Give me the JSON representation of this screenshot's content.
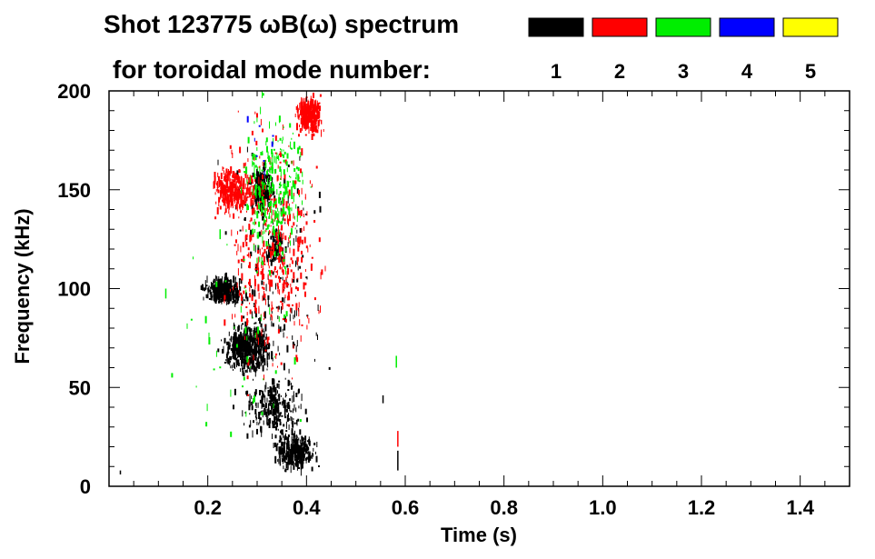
{
  "chart_data": {
    "type": "heatmap",
    "title_line1": "Shot 123775 ωB(ω) spectrum",
    "title_line2": "for toroidal mode number:",
    "xlabel": "Time (s)",
    "ylabel": "Frequency (kHz)",
    "xlim": [
      0.0,
      1.5
    ],
    "ylim": [
      0,
      200
    ],
    "x_ticks": [
      0.2,
      0.4,
      0.6,
      0.8,
      1.0,
      1.2,
      1.4
    ],
    "x_tick_labels": [
      "0.2",
      "0.4",
      "0.6",
      "0.8",
      "1.0",
      "1.2",
      "1.4"
    ],
    "y_ticks": [
      0,
      50,
      100,
      150,
      200
    ],
    "y_tick_labels": [
      "0",
      "50",
      "100",
      "150",
      "200"
    ],
    "legend": [
      {
        "mode": "1",
        "color": "#000000"
      },
      {
        "mode": "2",
        "color": "#ff0000"
      },
      {
        "mode": "3",
        "color": "#00ee00"
      },
      {
        "mode": "4",
        "color": "#0000ff"
      },
      {
        "mode": "5",
        "color": "#ffff00"
      }
    ],
    "clusters": [
      {
        "mode": "1",
        "t0": 0.18,
        "t1": 0.28,
        "f0": 90,
        "f1": 108,
        "n": 320
      },
      {
        "mode": "1",
        "t0": 0.22,
        "t1": 0.34,
        "f0": 55,
        "f1": 85,
        "n": 520
      },
      {
        "mode": "1",
        "t0": 0.28,
        "t1": 0.34,
        "f0": 135,
        "f1": 165,
        "n": 200
      },
      {
        "mode": "1",
        "t0": 0.31,
        "t1": 0.36,
        "f0": 110,
        "f1": 135,
        "n": 60
      },
      {
        "mode": "1",
        "t0": 0.32,
        "t1": 0.43,
        "f0": 5,
        "f1": 30,
        "n": 320
      },
      {
        "mode": "1",
        "t0": 0.26,
        "t1": 0.4,
        "f0": 20,
        "f1": 60,
        "n": 240
      },
      {
        "mode": "1",
        "t0": 0.2,
        "t1": 0.46,
        "f0": 0,
        "f1": 200,
        "n": 240
      },
      {
        "mode": "2",
        "t0": 0.2,
        "t1": 0.3,
        "f0": 135,
        "f1": 165,
        "n": 320
      },
      {
        "mode": "2",
        "t0": 0.37,
        "t1": 0.44,
        "f0": 175,
        "f1": 200,
        "n": 300
      },
      {
        "mode": "2",
        "t0": 0.2,
        "t1": 0.46,
        "f0": 40,
        "f1": 200,
        "n": 460
      },
      {
        "mode": "3",
        "t0": 0.25,
        "t1": 0.42,
        "f0": 100,
        "f1": 200,
        "n": 260
      },
      {
        "mode": "3",
        "t0": 0.1,
        "t1": 0.46,
        "f0": 0,
        "f1": 160,
        "n": 60
      },
      {
        "mode": "4",
        "t0": 0.2,
        "t1": 0.42,
        "f0": 150,
        "f1": 200,
        "n": 8
      }
    ],
    "traces": [
      {
        "mode": "1",
        "t": 0.023,
        "f0": 6,
        "f1": 8
      },
      {
        "mode": "1",
        "t": 0.585,
        "f0": 8,
        "f1": 18
      },
      {
        "mode": "2",
        "t": 0.585,
        "f0": 20,
        "f1": 28
      },
      {
        "mode": "3",
        "t": 0.582,
        "f0": 60,
        "f1": 66
      },
      {
        "mode": "1",
        "t": 0.555,
        "f0": 42,
        "f1": 46
      },
      {
        "mode": "3",
        "t": 0.115,
        "f0": 95,
        "f1": 100
      },
      {
        "mode": "3",
        "t": 0.225,
        "f0": 125,
        "f1": 130
      }
    ]
  }
}
